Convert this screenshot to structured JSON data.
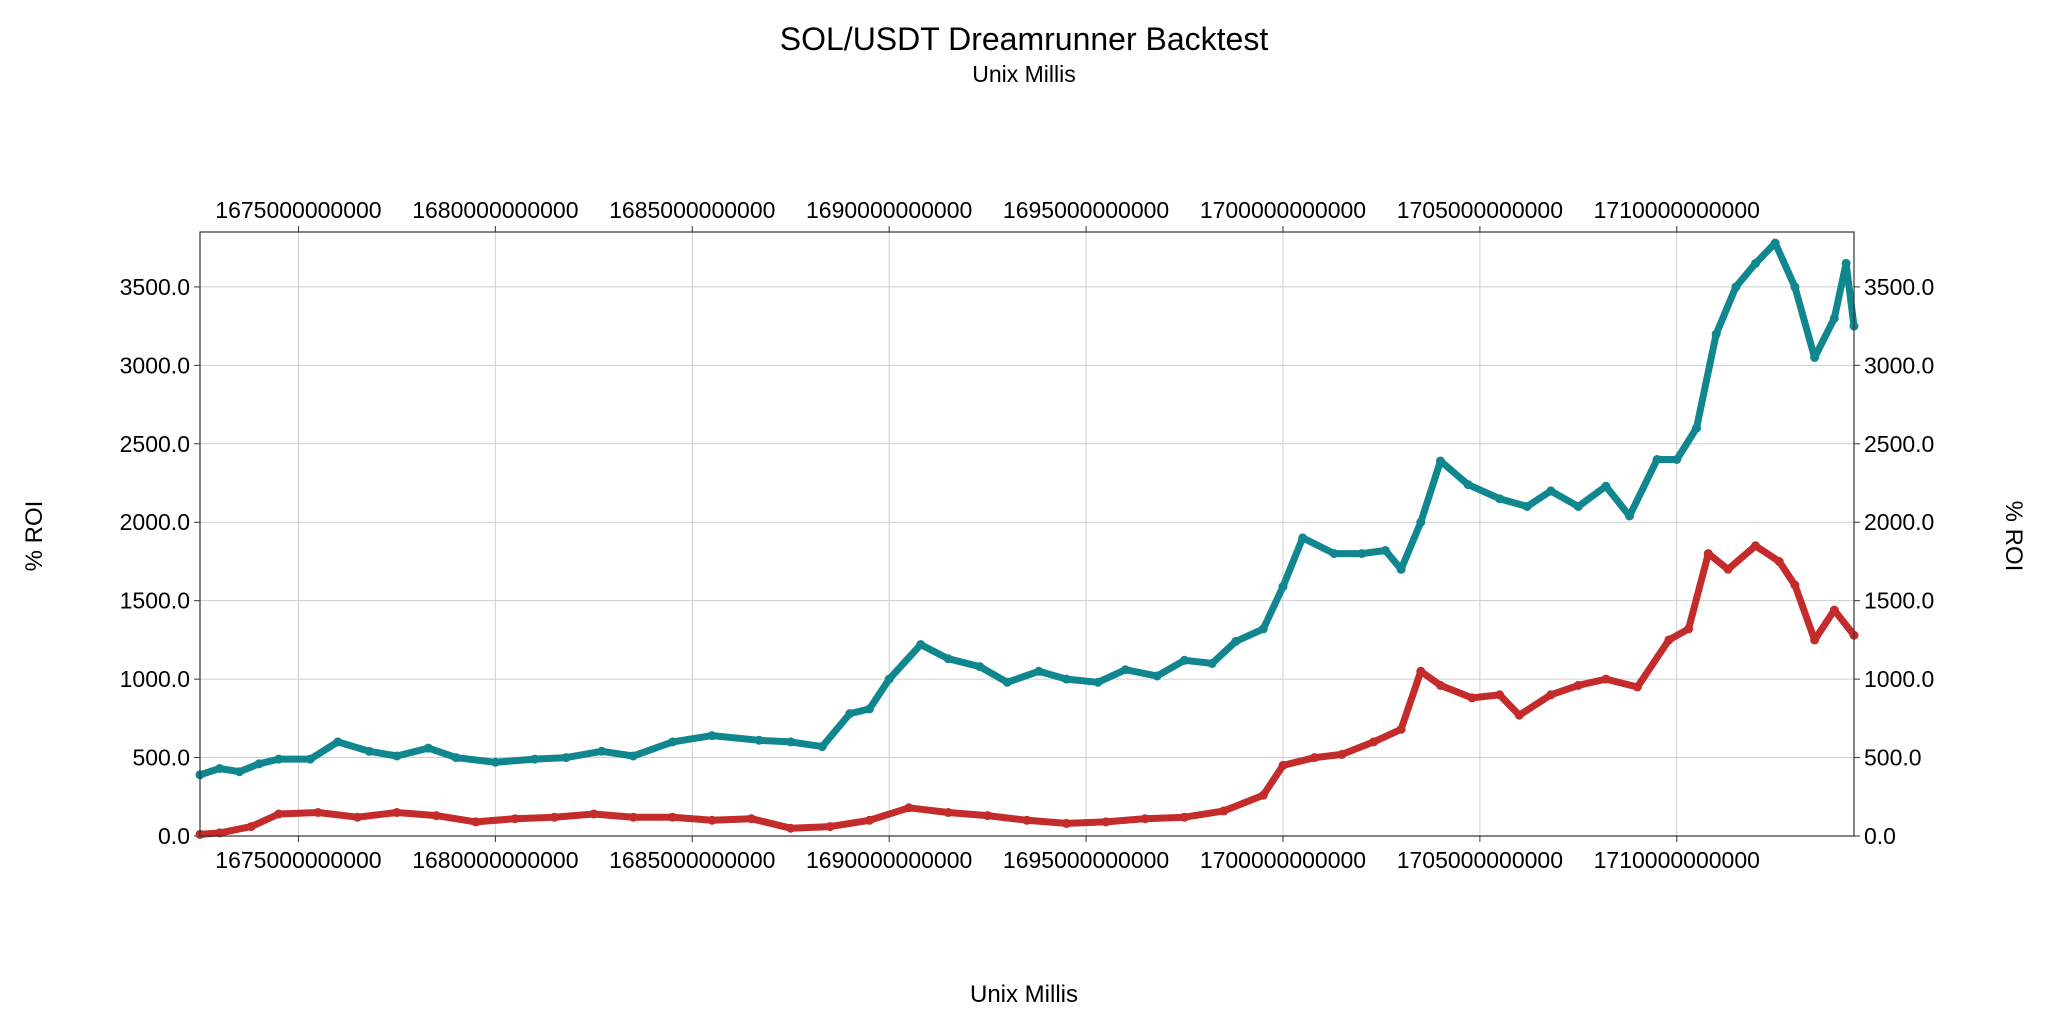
{
  "chart_data": {
    "type": "line",
    "title": "SOL/USDT Dreamrunner Backtest",
    "subtitle": "Unix Millis",
    "xlabel": "Unix Millis",
    "ylabel": "% ROI",
    "ylabel_right": "% ROI",
    "xlim": [
      1672500000000,
      1714500000000
    ],
    "ylim": [
      0,
      3850
    ],
    "x_ticks": [
      1675000000000,
      1680000000000,
      1685000000000,
      1690000000000,
      1695000000000,
      1700000000000,
      1705000000000,
      1710000000000
    ],
    "x_tick_labels": [
      "1675000000000",
      "1680000000000",
      "1685000000000",
      "1690000000000",
      "1695000000000",
      "1700000000000",
      "1705000000000",
      "1710000000000"
    ],
    "y_ticks": [
      0,
      500,
      1000,
      1500,
      2000,
      2500,
      3000,
      3500
    ],
    "y_tick_labels": [
      "0.0",
      "500.0",
      "1000.0",
      "1500.0",
      "2000.0",
      "2500.0",
      "3000.0",
      "3500.0"
    ],
    "grid": true,
    "series": [
      {
        "color": "#10868f",
        "x": [
          1672500000000,
          1673000000000,
          1673500000000,
          1674000000000,
          1674500000000,
          1675300000000,
          1676000000000,
          1676800000000,
          1677500000000,
          1678300000000,
          1679000000000,
          1680000000000,
          1681000000000,
          1681800000000,
          1682700000000,
          1683500000000,
          1684500000000,
          1685500000000,
          1686700000000,
          1687500000000,
          1688300000000,
          1689000000000,
          1689500000000,
          1690000000000,
          1690800000000,
          1691500000000,
          1692300000000,
          1693000000000,
          1693800000000,
          1694500000000,
          1695300000000,
          1696000000000,
          1696800000000,
          1697500000000,
          1698200000000,
          1698800000000,
          1699500000000,
          1700000000000,
          1700500000000,
          1701300000000,
          1702000000000,
          1702600000000,
          1703000000000,
          1703500000000,
          1704000000000,
          1704700000000,
          1705500000000,
          1706200000000,
          1706800000000,
          1707500000000,
          1708200000000,
          1708800000000,
          1709500000000,
          1710000000000,
          1710500000000,
          1711000000000,
          1711500000000,
          1712000000000,
          1712500000000,
          1713000000000,
          1713500000000,
          1714000000000,
          1714300000000,
          1714500000000
        ],
        "y": [
          390,
          430,
          410,
          460,
          490,
          490,
          600,
          540,
          510,
          560,
          500,
          470,
          490,
          500,
          540,
          510,
          600,
          640,
          610,
          600,
          570,
          780,
          810,
          1000,
          1220,
          1130,
          1080,
          980,
          1050,
          1000,
          980,
          1060,
          1020,
          1120,
          1100,
          1240,
          1320,
          1590,
          1900,
          1800,
          1800,
          1820,
          1700,
          2000,
          2390,
          2240,
          2150,
          2100,
          2200,
          2100,
          2230,
          2040,
          2400,
          2400,
          2600,
          3200,
          3500,
          3650,
          3780,
          3500,
          3050,
          3300,
          3650,
          3250
        ]
      },
      {
        "color": "#c42b2b",
        "x": [
          1672500000000,
          1673000000000,
          1673800000000,
          1674500000000,
          1675500000000,
          1676500000000,
          1677500000000,
          1678500000000,
          1679500000000,
          1680500000000,
          1681500000000,
          1682500000000,
          1683500000000,
          1684500000000,
          1685500000000,
          1686500000000,
          1687500000000,
          1688500000000,
          1689500000000,
          1690500000000,
          1691500000000,
          1692500000000,
          1693500000000,
          1694500000000,
          1695500000000,
          1696500000000,
          1697500000000,
          1698500000000,
          1699500000000,
          1700000000000,
          1700800000000,
          1701500000000,
          1702300000000,
          1703000000000,
          1703500000000,
          1704000000000,
          1704800000000,
          1705500000000,
          1706000000000,
          1706800000000,
          1707500000000,
          1708200000000,
          1709000000000,
          1709800000000,
          1710300000000,
          1710800000000,
          1711300000000,
          1712000000000,
          1712600000000,
          1713000000000,
          1713500000000,
          1714000000000,
          1714500000000
        ],
        "y": [
          10,
          20,
          60,
          140,
          150,
          120,
          150,
          130,
          90,
          110,
          120,
          140,
          120,
          120,
          100,
          110,
          50,
          60,
          100,
          180,
          150,
          130,
          100,
          80,
          90,
          110,
          120,
          160,
          260,
          450,
          500,
          520,
          600,
          680,
          1050,
          960,
          880,
          900,
          770,
          900,
          960,
          1000,
          950,
          1250,
          1320,
          1800,
          1700,
          1850,
          1750,
          1600,
          1250,
          1440,
          1280
        ]
      }
    ]
  }
}
